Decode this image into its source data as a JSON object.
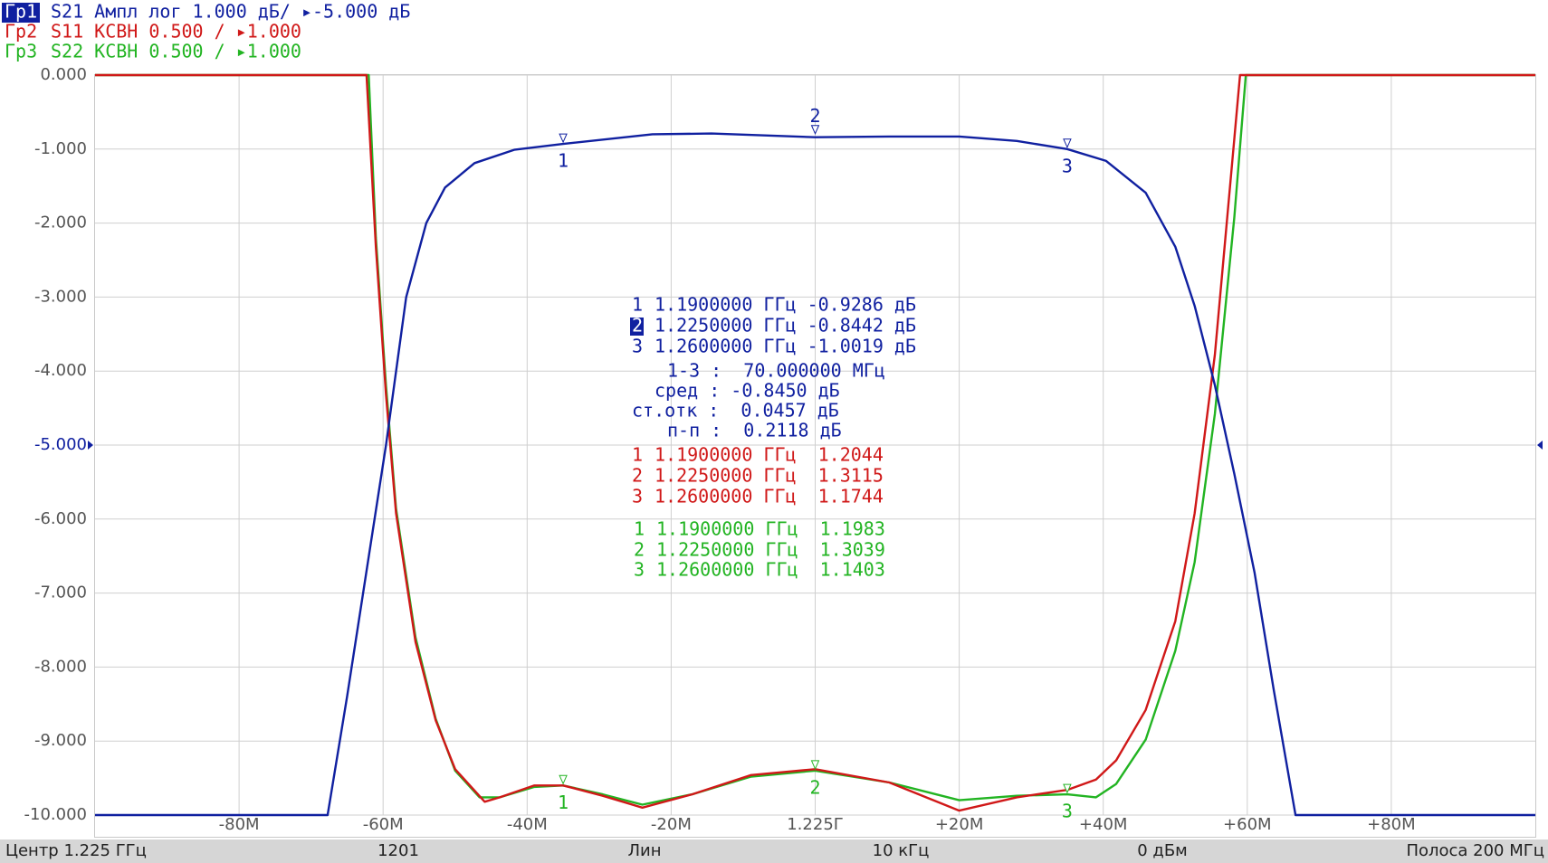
{
  "chart_data": {
    "type": "line",
    "xlim": [
      -100,
      100
    ],
    "ylim": [
      -10,
      0
    ],
    "y2lim": [
      1,
      6
    ],
    "ref_level": -5,
    "grid": true,
    "xticks": [
      {
        "value": -80,
        "label": "-80M"
      },
      {
        "value": -60,
        "label": "-60M"
      },
      {
        "value": -40,
        "label": "-40M"
      },
      {
        "value": -20,
        "label": "-20M"
      },
      {
        "value": 0,
        "label": "1.225Г"
      },
      {
        "value": 20,
        "label": "+20M"
      },
      {
        "value": 40,
        "label": "+40M"
      },
      {
        "value": 60,
        "label": "+60M"
      },
      {
        "value": 80,
        "label": "+80M"
      }
    ],
    "yticks": [
      {
        "value": 0,
        "label": "0.000"
      },
      {
        "value": -1,
        "label": "-1.000"
      },
      {
        "value": -2,
        "label": "-2.000"
      },
      {
        "value": -3,
        "label": "-3.000"
      },
      {
        "value": -4,
        "label": "-4.000"
      },
      {
        "value": -5,
        "label": "-5.000"
      },
      {
        "value": -6,
        "label": "-6.000"
      },
      {
        "value": -7,
        "label": "-7.000"
      },
      {
        "value": -8,
        "label": "-8.000"
      },
      {
        "value": -9,
        "label": "-9.000"
      },
      {
        "value": -10,
        "label": "-10.000"
      }
    ],
    "markers": [
      {
        "label": "1",
        "x": -35
      },
      {
        "label": "2",
        "x": 0,
        "active": true
      },
      {
        "label": "3",
        "x": 35
      }
    ],
    "series": [
      {
        "name": "Гр1",
        "label": "S21 Ампл лог 1.000 дБ/ ▸-5.000 дБ",
        "color": "#1020a0",
        "x": [
          -100,
          -67.7,
          -65,
          -62.3,
          -59.6,
          -56.8,
          -54,
          -51.4,
          -47.3,
          -41.8,
          -35,
          -22.6,
          -14.4,
          0,
          10.3,
          20,
          28,
          35,
          40.4,
          45.9,
          50,
          52.7,
          55.5,
          58.2,
          61,
          63.7,
          66.7,
          100
        ],
        "values": [
          -10,
          -10,
          -8.4,
          -6.7,
          -5.0,
          -3.0,
          -2.0,
          -1.52,
          -1.19,
          -1.01,
          -0.93,
          -0.8,
          -0.79,
          -0.84,
          -0.83,
          -0.83,
          -0.89,
          -1.0,
          -1.16,
          -1.59,
          -2.32,
          -3.12,
          -4.19,
          -5.39,
          -6.72,
          -8.32,
          -10,
          -10
        ],
        "readout": [
          {
            "n": "1",
            "text": "1.1900000 ГГц -0.9286 дБ"
          },
          {
            "n": "2",
            "text": "1.2250000 ГГц -0.8442 дБ"
          },
          {
            "n": "3",
            "text": "1.2600000 ГГц -1.0019 дБ"
          }
        ],
        "stats": [
          "1-3 :  70.000000 МГц",
          "сред : -0.8450 дБ",
          "ст.отк :  0.0457 дБ",
          "п-п :  0.2118 дБ"
        ]
      },
      {
        "name": "Гр2",
        "label": "S11 КСВН 0.500 / ▸1.000",
        "color": "#d01818",
        "axis": "y2",
        "x": [
          -100,
          -62.3,
          -61,
          -59.6,
          -58.2,
          -55.5,
          -52.7,
          -50,
          -45.9,
          -43.8,
          -39,
          -35,
          -29.5,
          -24,
          -17.1,
          -8.9,
          0,
          10.3,
          20,
          28,
          35,
          39,
          41.8,
          45.9,
          50,
          52.7,
          55.5,
          58.2,
          59,
          100
        ],
        "values": [
          6,
          6,
          4.84,
          3.84,
          3.04,
          2.17,
          1.64,
          1.31,
          1.09,
          1.12,
          1.2,
          1.2,
          1.13,
          1.05,
          1.14,
          1.27,
          1.31,
          1.22,
          1.03,
          1.12,
          1.17,
          1.24,
          1.37,
          1.71,
          2.31,
          3.04,
          4.11,
          5.57,
          6,
          6
        ],
        "readout": [
          {
            "n": "1",
            "text": "1.1900000 ГГц  1.2044"
          },
          {
            "n": "2",
            "text": "1.2250000 ГГц  1.3115"
          },
          {
            "n": "3",
            "text": "1.2600000 ГГц  1.1744"
          }
        ]
      },
      {
        "name": "Гр3",
        "label": "S22 КСВН 0.500 / ▸1.000",
        "color": "#22b422",
        "axis": "y2",
        "x": [
          -100,
          -62,
          -61,
          -59.6,
          -58.2,
          -55.5,
          -52.7,
          -50,
          -46.6,
          -43.8,
          -39,
          -35,
          -29.5,
          -24,
          -17.1,
          -8.9,
          0,
          10.3,
          20,
          28,
          35,
          39,
          41.8,
          45.9,
          50,
          52.7,
          55.5,
          58.2,
          59.8,
          100
        ],
        "values": [
          6,
          6,
          4.9,
          3.9,
          3.07,
          2.2,
          1.65,
          1.3,
          1.12,
          1.12,
          1.19,
          1.2,
          1.14,
          1.07,
          1.14,
          1.26,
          1.3,
          1.22,
          1.1,
          1.13,
          1.14,
          1.12,
          1.21,
          1.51,
          2.11,
          2.71,
          3.71,
          5.04,
          6,
          6
        ],
        "readout": [
          {
            "n": "1",
            "text": "1.1900000 ГГц  1.1983"
          },
          {
            "n": "2",
            "text": "1.2250000 ГГц  1.3039"
          },
          {
            "n": "3",
            "text": "1.2600000 ГГц  1.1403"
          }
        ]
      }
    ],
    "footer": [
      "Центр 1.225 ГГц",
      "1201",
      "Лин",
      "10 кГц",
      "0 дБм",
      "Полоса 200 МГц"
    ]
  }
}
